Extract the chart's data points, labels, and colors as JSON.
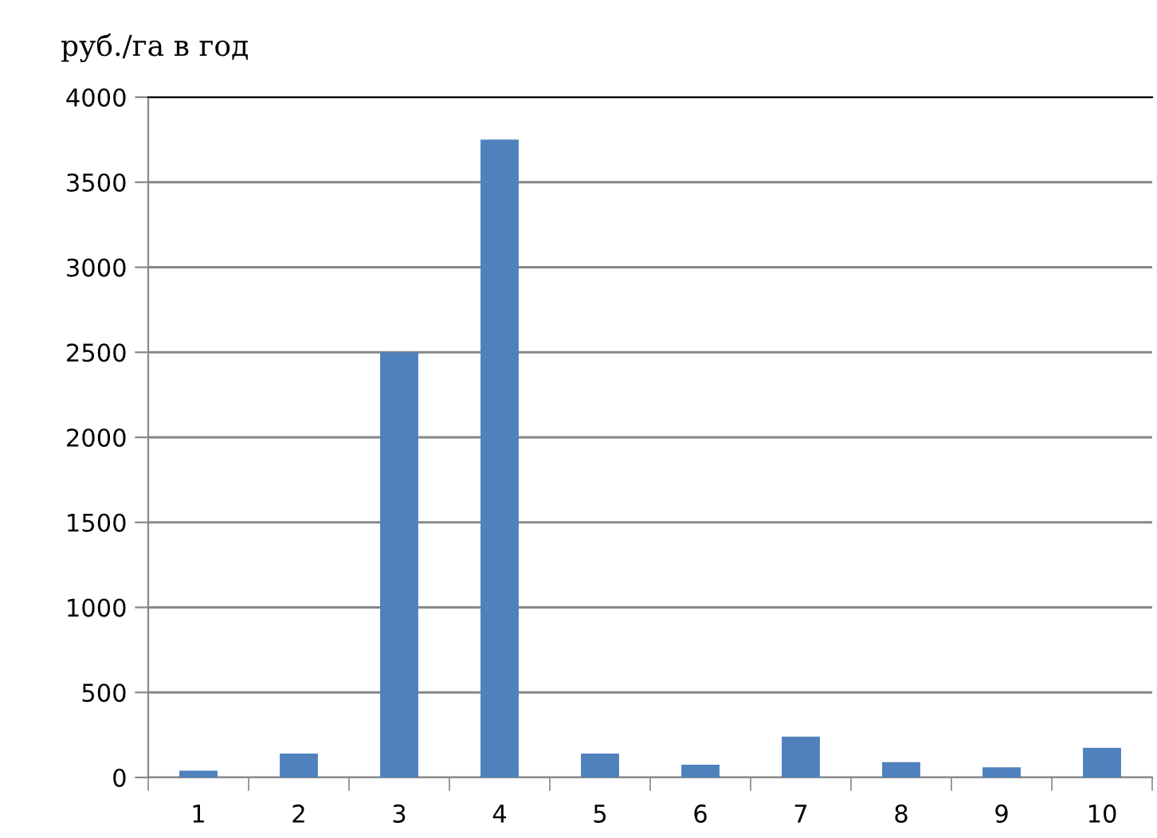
{
  "chart_data": {
    "type": "bar",
    "ylabel": "руб./га в год",
    "categories": [
      "1",
      "2",
      "3",
      "4",
      "5",
      "6",
      "7",
      "8",
      "9",
      "10"
    ],
    "values": [
      40,
      140,
      2500,
      3750,
      140,
      75,
      240,
      90,
      60,
      175
    ],
    "color": "#4f81bd",
    "ylim": [
      0,
      4000
    ],
    "yticks": [
      0,
      500,
      1000,
      1500,
      2000,
      2500,
      3000,
      3500,
      4000
    ],
    "grid": "y",
    "legend": false
  }
}
